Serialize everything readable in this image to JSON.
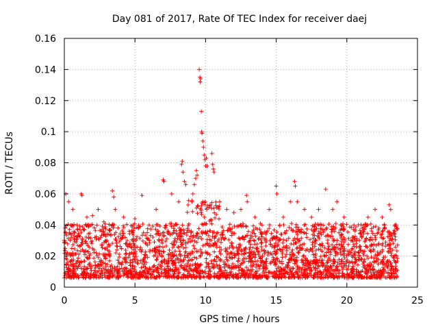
{
  "chart_data": {
    "type": "scatter",
    "title": "Day 081 of 2017, Rate Of TEC Index for receiver daej",
    "xlabel": "GPS time / hours",
    "ylabel": "ROTI / TECUs",
    "xlim": [
      0,
      25
    ],
    "ylim": [
      0,
      0.16
    ],
    "xticks": [
      0,
      5,
      10,
      15,
      20,
      25
    ],
    "yticks": [
      0,
      0.02,
      0.04,
      0.06,
      0.08,
      0.1,
      0.12,
      0.14,
      0.16
    ],
    "xtick_labels": [
      "0",
      "5",
      "10",
      "15",
      "20",
      "25"
    ],
    "ytick_labels": [
      "0",
      "0.02",
      "0.04",
      "0.06",
      "0.08",
      "0.1",
      "0.12",
      "0.14",
      "0.16"
    ],
    "grid": true,
    "marker": "plus",
    "color": "#ff0000",
    "data_range": {
      "x_min": 0.0,
      "x_max": 23.6
    },
    "series": [
      {
        "name": "ROTI",
        "points": [
          [
            0.1,
            0.06
          ],
          [
            0.3,
            0.055
          ],
          [
            0.6,
            0.05
          ],
          [
            0.9,
            0.04
          ],
          [
            1.2,
            0.06
          ],
          [
            1.25,
            0.059
          ],
          [
            1.6,
            0.045
          ],
          [
            2.0,
            0.046
          ],
          [
            2.4,
            0.05
          ],
          [
            2.8,
            0.042
          ],
          [
            3.4,
            0.062
          ],
          [
            3.5,
            0.058
          ],
          [
            3.6,
            0.05
          ],
          [
            4.2,
            0.045
          ],
          [
            4.6,
            0.036
          ],
          [
            5.0,
            0.044
          ],
          [
            5.5,
            0.059
          ],
          [
            6.0,
            0.04
          ],
          [
            6.5,
            0.05
          ],
          [
            7.0,
            0.069
          ],
          [
            7.05,
            0.068
          ],
          [
            7.6,
            0.06
          ],
          [
            8.1,
            0.055
          ],
          [
            8.3,
            0.079
          ],
          [
            8.35,
            0.081
          ],
          [
            8.4,
            0.074
          ],
          [
            8.5,
            0.068
          ],
          [
            8.6,
            0.066
          ],
          [
            9.1,
            0.06
          ],
          [
            9.2,
            0.066
          ],
          [
            9.3,
            0.07
          ],
          [
            9.35,
            0.075
          ],
          [
            9.4,
            0.072
          ],
          [
            9.55,
            0.14
          ],
          [
            9.6,
            0.135
          ],
          [
            9.62,
            0.132
          ],
          [
            9.65,
            0.134
          ],
          [
            9.7,
            0.113
          ],
          [
            9.72,
            0.1
          ],
          [
            9.75,
            0.099
          ],
          [
            9.8,
            0.094
          ],
          [
            9.85,
            0.09
          ],
          [
            9.9,
            0.085
          ],
          [
            9.95,
            0.082
          ],
          [
            10.0,
            0.078
          ],
          [
            10.05,
            0.083
          ],
          [
            10.1,
            0.078
          ],
          [
            10.45,
            0.086
          ],
          [
            10.5,
            0.079
          ],
          [
            10.55,
            0.076
          ],
          [
            10.6,
            0.074
          ],
          [
            11.0,
            0.055
          ],
          [
            11.5,
            0.05
          ],
          [
            12.0,
            0.048
          ],
          [
            12.5,
            0.05
          ],
          [
            12.9,
            0.059
          ],
          [
            12.95,
            0.055
          ],
          [
            13.5,
            0.045
          ],
          [
            14.0,
            0.04
          ],
          [
            14.5,
            0.05
          ],
          [
            15.0,
            0.065
          ],
          [
            15.05,
            0.06
          ],
          [
            15.5,
            0.045
          ],
          [
            16.0,
            0.055
          ],
          [
            16.3,
            0.068
          ],
          [
            16.35,
            0.065
          ],
          [
            16.5,
            0.055
          ],
          [
            17.0,
            0.05
          ],
          [
            17.5,
            0.045
          ],
          [
            18.0,
            0.05
          ],
          [
            18.5,
            0.063
          ],
          [
            19.0,
            0.05
          ],
          [
            19.3,
            0.055
          ],
          [
            19.8,
            0.045
          ],
          [
            20.5,
            0.04
          ],
          [
            21.0,
            0.035
          ],
          [
            21.5,
            0.045
          ],
          [
            22.0,
            0.05
          ],
          [
            22.5,
            0.045
          ],
          [
            23.0,
            0.053
          ],
          [
            23.1,
            0.05
          ],
          [
            23.5,
            0.04
          ]
        ]
      }
    ]
  }
}
